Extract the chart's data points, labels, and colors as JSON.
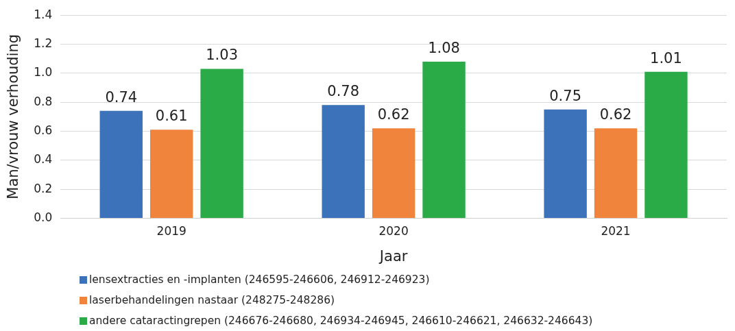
{
  "chart_data": {
    "type": "bar",
    "xlabel": "Jaar",
    "ylabel": "Man/vrouw verhouding",
    "categories": [
      "2019",
      "2020",
      "2021"
    ],
    "series": [
      {
        "name": "lensextracties en -implanten (246595-246606, 246912-246923)",
        "color": "#3b72b9",
        "values": [
          0.74,
          0.78,
          0.75
        ]
      },
      {
        "name": "laserbehandelingen nastaar (248275-248286)",
        "color": "#f0843c",
        "values": [
          0.61,
          0.62,
          0.62
        ]
      },
      {
        "name": "andere cataractingrepen (246676-246680, 246934-246945, 246610-246621, 246632-246643)",
        "color": "#2aab48",
        "values": [
          1.03,
          1.08,
          1.01
        ]
      }
    ],
    "ylim": [
      0,
      1.4
    ],
    "yticks": [
      {
        "value": 0,
        "label": "0.0"
      },
      {
        "value": 0.2,
        "label": "0.2"
      },
      {
        "value": 0.4,
        "label": "0.4"
      },
      {
        "value": 0.6,
        "label": "0.6"
      },
      {
        "value": 0.8,
        "label": "0.8"
      },
      {
        "value": 1,
        "label": "1.0"
      },
      {
        "value": 1.2,
        "label": "1.2"
      },
      {
        "value": 1.4,
        "label": "1.4"
      }
    ],
    "grid": "y",
    "legend": "bottom",
    "data_labels": true
  }
}
